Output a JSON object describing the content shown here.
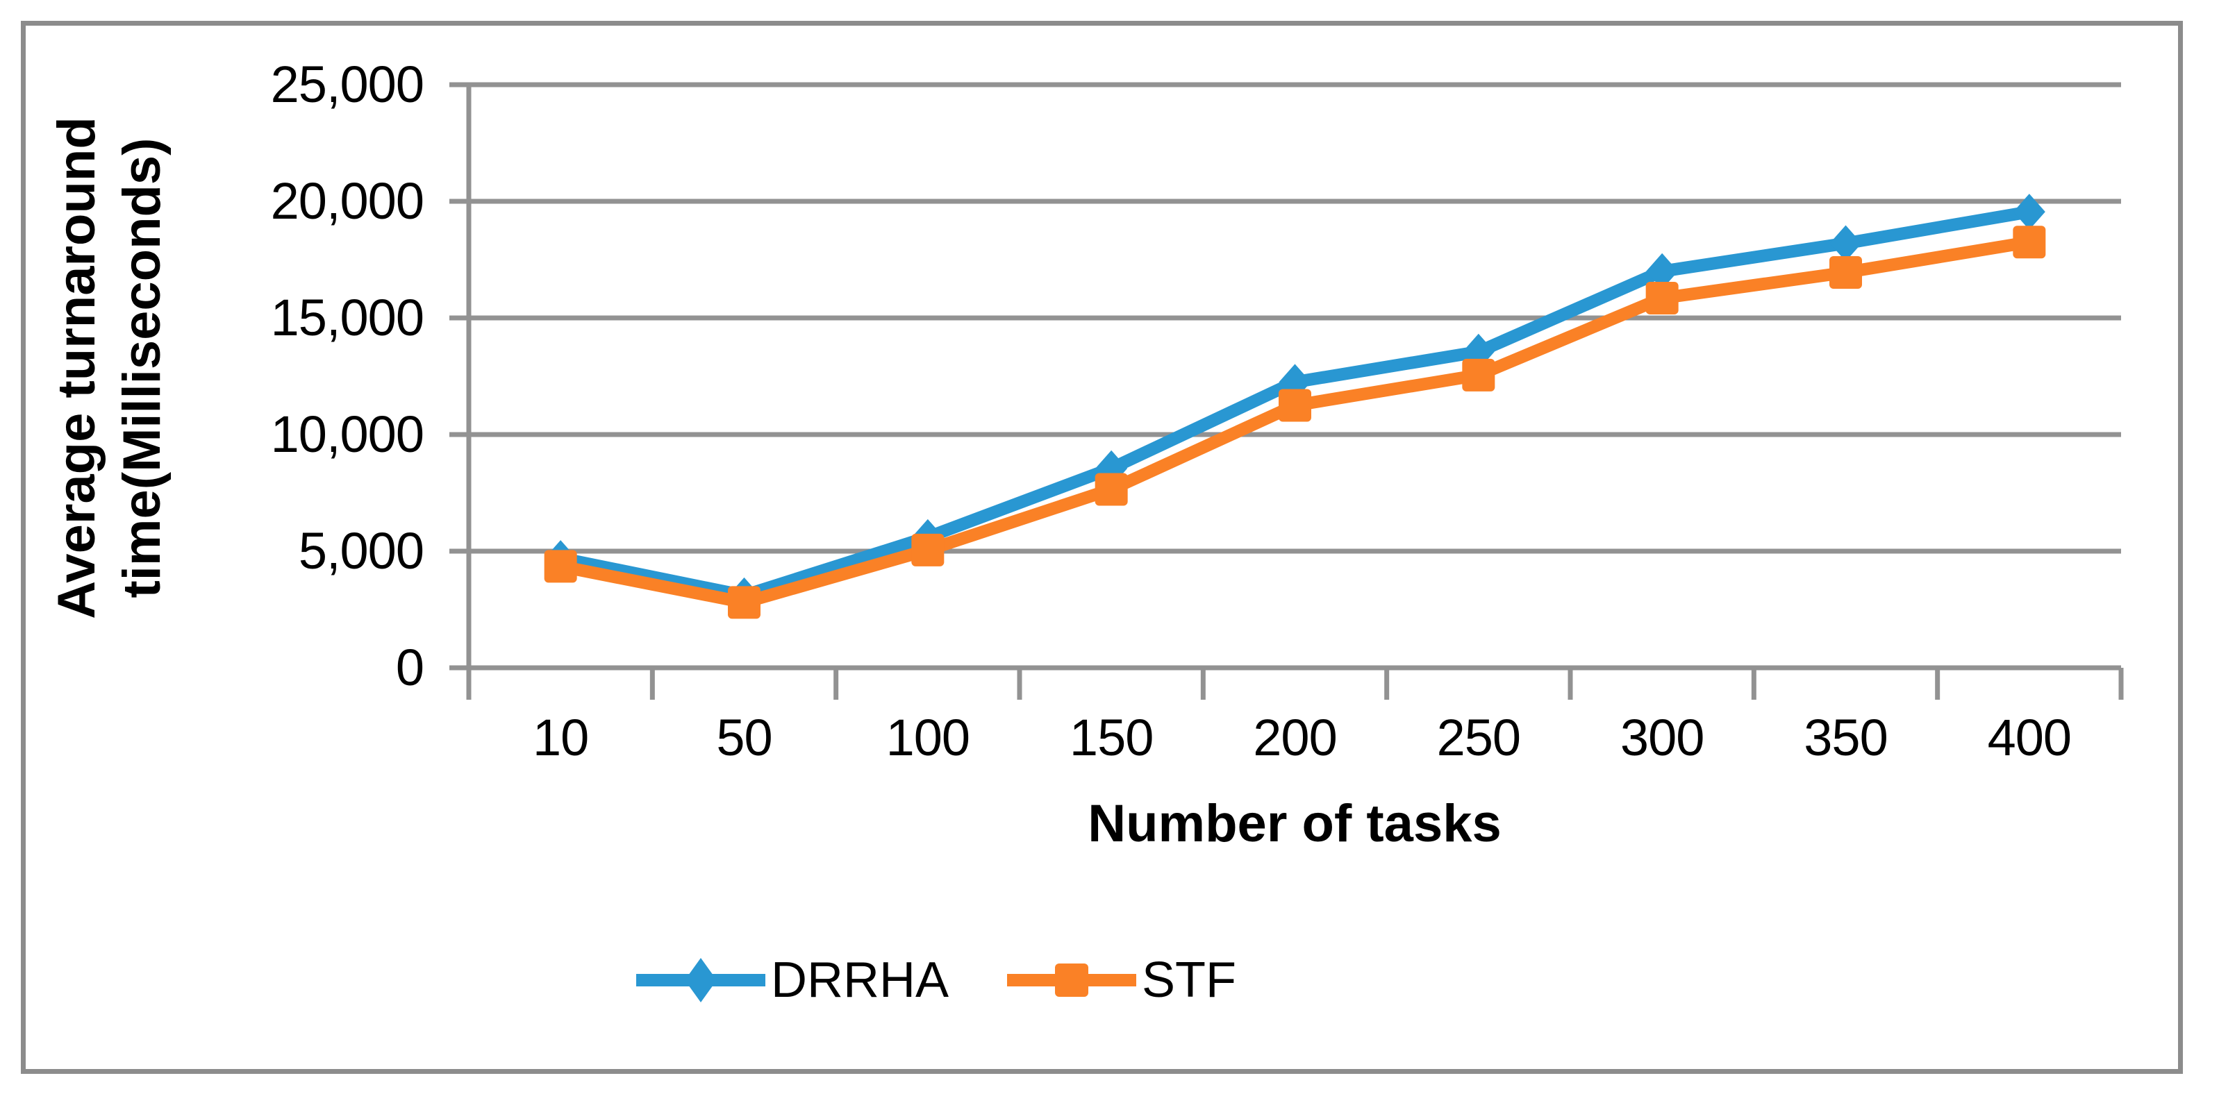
{
  "chart_data": {
    "type": "line",
    "xlabel": "Number of tasks",
    "ylabel_line1": "Average turnaround",
    "ylabel_line2": "time(Milliseconds)",
    "categories": [
      "10",
      "50",
      "100",
      "150",
      "200",
      "250",
      "300",
      "350",
      "400"
    ],
    "series": [
      {
        "name": "DRRHA",
        "color": "#2997D2",
        "marker": "diamond",
        "values": [
          4700,
          3100,
          5600,
          8550,
          12250,
          13550,
          17000,
          18200,
          19550
        ]
      },
      {
        "name": "STF",
        "color": "#FA8126",
        "marker": "square",
        "values": [
          4350,
          2800,
          5050,
          7650,
          11250,
          12550,
          15850,
          16950,
          18250
        ]
      }
    ],
    "y_ticks": [
      {
        "value": 0,
        "label": "0"
      },
      {
        "value": 5000,
        "label": "5,000"
      },
      {
        "value": 10000,
        "label": "10,000"
      },
      {
        "value": 15000,
        "label": "15,000"
      },
      {
        "value": 20000,
        "label": "20,000"
      },
      {
        "value": 25000,
        "label": "25,000"
      }
    ],
    "ylim": [
      0,
      25000
    ],
    "grid": "horizontal",
    "legend_position": "bottom-left",
    "axis_color": "#929292",
    "border_color": "#8C8C8C",
    "text_color": "#000000"
  }
}
